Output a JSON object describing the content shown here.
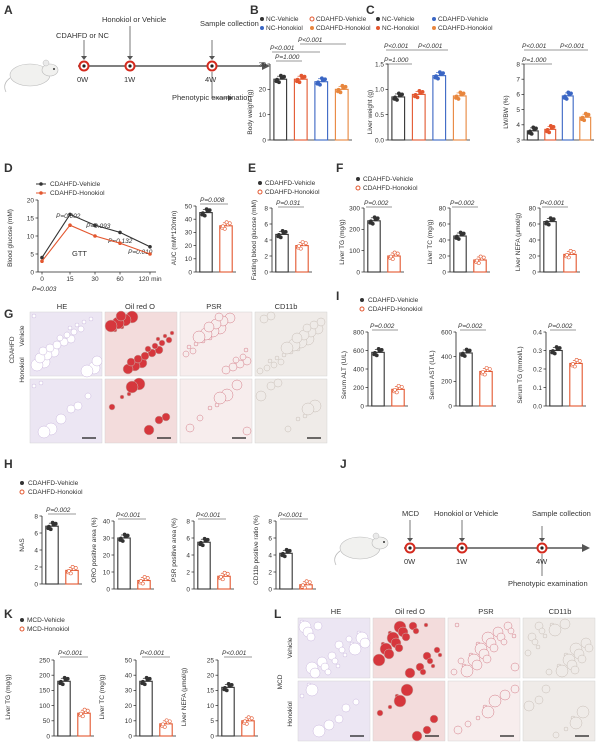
{
  "panels": {
    "A": {
      "letter": "A",
      "diet_label": "CDAHFD or NC",
      "treatment_label": "Honokiol or Vehicle",
      "sample_label": "Sample collection",
      "pheno_label": "Phenotypic examination",
      "timepoints": [
        "0W",
        "1W",
        "4W"
      ]
    },
    "B": {
      "letter": "B",
      "legend": [
        "NC-Vehicle",
        "CDAHFD-Vehicle",
        "NC-Honokiol",
        "CDAHFD-Honokiol"
      ],
      "ylabel": "Body weight (g)",
      "yticks": [
        "0",
        "10",
        "20",
        "30"
      ],
      "pvalues": [
        "P=1.000",
        "P<0.001",
        "P<0.001"
      ]
    },
    "C": {
      "letter": "C",
      "legend": [
        "NC-Vehicle",
        "CDAHFD-Vehicle",
        "NC-Honokiol",
        "CDAHFD-Honokiol"
      ],
      "left_ylabel": "Liver weight (g)",
      "left_yticks": [
        "0.0",
        "0.5",
        "1.0",
        "1.5"
      ],
      "left_pvalues": [
        "P<0.001",
        "P<0.001",
        "P=1.000"
      ],
      "right_ylabel": "LW/BW (%)",
      "right_yticks": [
        "3",
        "4",
        "5",
        "6",
        "7",
        "8"
      ],
      "right_pvalues": [
        "P<0.001",
        "P<0.001",
        "P=1.000"
      ]
    },
    "D": {
      "letter": "D",
      "legend": [
        "CDAHFD-Vehicle",
        "CDAHFD-Honokiol"
      ],
      "ylabel": "Blood glucose (mM)",
      "yticks": [
        "0",
        "5",
        "10",
        "15",
        "20"
      ],
      "xticks": [
        "0",
        "15",
        "30",
        "60",
        "120 min"
      ],
      "curve_label": "GTT",
      "pvalues": [
        "P=0.002",
        "P=0.093",
        "P=0.132",
        "P=0.010",
        "P=0.003"
      ],
      "auc_ylabel": "AUC (mM*120min)",
      "auc_yticks": [
        "0",
        "10",
        "20",
        "30",
        "40",
        "50"
      ],
      "auc_pvalue": "P=0.008"
    },
    "E": {
      "letter": "E",
      "legend": [
        "CDAHFD-Vehicle",
        "CDAHFD-Honokiol"
      ],
      "ylabel": "Fasting blood glucose (mM)",
      "yticks": [
        "0",
        "2",
        "4",
        "6",
        "8"
      ],
      "pvalue": "P=0.031"
    },
    "F": {
      "letter": "F",
      "legend": [
        "CDAHFD-Vehicle",
        "CDAHFD-Honokiol"
      ],
      "plots": [
        {
          "ylabel": "Liver TG (mg/g)",
          "yticks": [
            "0",
            "100",
            "200",
            "300"
          ],
          "pvalue": "P=0.002"
        },
        {
          "ylabel": "Liver TC (mg/g)",
          "yticks": [
            "0",
            "20",
            "40",
            "60",
            "80"
          ],
          "pvalue": "P=0.002"
        },
        {
          "ylabel": "Liver NEFA (μmol/g)",
          "yticks": [
            "0",
            "20",
            "40",
            "60",
            "80"
          ],
          "pvalue": "P<0.001"
        }
      ]
    },
    "G": {
      "letter": "G",
      "columns": [
        "HE",
        "Oil red O",
        "PSR",
        "CD11b"
      ],
      "group_label": "CDAHFD",
      "rows": [
        "Vehicle",
        "Honokiol"
      ]
    },
    "H": {
      "letter": "H",
      "legend": [
        "CDAHFD-Vehicle",
        "CDAHFD-Honokiol"
      ],
      "plots": [
        {
          "ylabel": "NAS",
          "yticks": [
            "0",
            "2",
            "4",
            "6",
            "8"
          ],
          "pvalue": "P=0.002"
        },
        {
          "ylabel": "ORO positive area (%)",
          "yticks": [
            "0",
            "10",
            "20",
            "30",
            "40"
          ],
          "pvalue": "P<0.001"
        },
        {
          "ylabel": "PSR positive area (%)",
          "yticks": [
            "0",
            "2",
            "4",
            "6",
            "8"
          ],
          "pvalue": "P<0.001"
        },
        {
          "ylabel": "CD11b positive ratio (%)",
          "yticks": [
            "0",
            "2",
            "4",
            "6",
            "8"
          ],
          "pvalue": "P<0.001"
        }
      ]
    },
    "I": {
      "letter": "I",
      "legend": [
        "CDAHFD-Vehicle",
        "CDAHFD-Honokiol"
      ],
      "plots": [
        {
          "ylabel": "Serum ALT (U/L)",
          "yticks": [
            "0",
            "200",
            "400",
            "600",
            "800"
          ],
          "pvalue": "P=0.002"
        },
        {
          "ylabel": "Serum AST (U/L)",
          "yticks": [
            "0",
            "200",
            "400",
            "600"
          ],
          "pvalue": "P=0.002"
        },
        {
          "ylabel": "Serum TG (mmol/L)",
          "yticks": [
            "0.0",
            "0.1",
            "0.2",
            "0.3",
            "0.4"
          ],
          "pvalue": "P=0.002"
        }
      ]
    },
    "J": {
      "letter": "J",
      "diet_label": "MCD",
      "treatment_label": "Honokiol or Vehicle",
      "sample_label": "Sample collection",
      "pheno_label": "Phenotypic examination",
      "timepoints": [
        "0W",
        "1W",
        "4W"
      ]
    },
    "K": {
      "letter": "K",
      "legend": [
        "MCD-Vehicle",
        "MCD-Honokiol"
      ],
      "plots": [
        {
          "ylabel": "Liver TG (mg/g)",
          "yticks": [
            "0",
            "50",
            "100",
            "150",
            "200",
            "250"
          ],
          "pvalue": "P<0.001"
        },
        {
          "ylabel": "Liver TC (mg/g)",
          "yticks": [
            "0",
            "10",
            "20",
            "30",
            "40",
            "50"
          ],
          "pvalue": "P<0.001"
        },
        {
          "ylabel": "Liver NEFA (μmol/g)",
          "yticks": [
            "0",
            "5",
            "10",
            "15",
            "20",
            "25"
          ],
          "pvalue": "P<0.001"
        }
      ]
    },
    "L": {
      "letter": "L",
      "columns": [
        "HE",
        "Oil red O",
        "PSR",
        "CD11b"
      ],
      "group_label": "MCD",
      "rows": [
        "Vehicle",
        "Honokiol"
      ]
    }
  },
  "colors": {
    "vehicle_ring": "#d42a1e",
    "nc_vehicle": "#333333",
    "cdahfd_vehicle": "#e3572f",
    "nc_honokiol": "#3a66c4",
    "cdahfd_honokiol": "#e8863d",
    "he_stain": "#c9b6dd",
    "oro_stain": "#d6373d",
    "psr_stain": "#e9cfd2",
    "cd11b_stain": "#ddd6d2"
  },
  "chart_data": [
    {
      "type": "bar",
      "panel": "B",
      "categories": [
        "NC-Vehicle",
        "CDAHFD-Vehicle",
        "NC-Honokiol",
        "CDAHFD-Honokiol"
      ],
      "values": [
        24,
        24,
        23,
        20
      ],
      "ylabel": "Body weight (g)",
      "ylim": [
        0,
        30
      ]
    },
    {
      "type": "bar",
      "panel": "C-left",
      "categories": [
        "NC-Vehicle",
        "CDAHFD-Vehicle",
        "NC-Honokiol",
        "CDAHFD-Honokiol"
      ],
      "values": [
        0.85,
        0.9,
        1.27,
        0.87
      ],
      "ylabel": "Liver weight (g)",
      "ylim": [
        0,
        1.5
      ]
    },
    {
      "type": "bar",
      "panel": "C-right",
      "categories": [
        "NC-Vehicle",
        "CDAHFD-Vehicle",
        "NC-Honokiol",
        "CDAHFD-Honokiol"
      ],
      "values": [
        3.6,
        3.7,
        5.9,
        4.5
      ],
      "ylabel": "LW/BW (%)",
      "ylim": [
        3,
        8
      ]
    },
    {
      "type": "line",
      "panel": "D",
      "x": [
        0,
        15,
        30,
        60,
        120
      ],
      "series": [
        {
          "name": "CDAHFD-Vehicle",
          "values": [
            4,
            16,
            13,
            11,
            7
          ]
        },
        {
          "name": "CDAHFD-Honokiol",
          "values": [
            3,
            13,
            10,
            8,
            5
          ]
        }
      ],
      "ylabel": "Blood glucose (mM)",
      "ylim": [
        0,
        20
      ]
    },
    {
      "type": "bar",
      "panel": "D-AUC",
      "categories": [
        "CDAHFD-Vehicle",
        "CDAHFD-Honokiol"
      ],
      "values": [
        45,
        35
      ],
      "ylabel": "AUC (mM*120min)",
      "ylim": [
        0,
        50
      ]
    },
    {
      "type": "bar",
      "panel": "E",
      "categories": [
        "CDAHFD-Vehicle",
        "CDAHFD-Honokiol"
      ],
      "values": [
        4.7,
        3.3
      ],
      "ylabel": "Fasting blood glucose (mM)",
      "ylim": [
        0,
        8
      ]
    },
    {
      "type": "bar",
      "panel": "F-TG",
      "categories": [
        "CDAHFD-Vehicle",
        "CDAHFD-Honokiol"
      ],
      "values": [
        240,
        75
      ],
      "ylabel": "Liver TG (mg/g)",
      "ylim": [
        0,
        300
      ]
    },
    {
      "type": "bar",
      "panel": "F-TC",
      "categories": [
        "CDAHFD-Vehicle",
        "CDAHFD-Honokiol"
      ],
      "values": [
        45,
        15
      ],
      "ylabel": "Liver TC (mg/g)",
      "ylim": [
        0,
        80
      ]
    },
    {
      "type": "bar",
      "panel": "F-NEFA",
      "categories": [
        "CDAHFD-Vehicle",
        "CDAHFD-Honokiol"
      ],
      "values": [
        63,
        22
      ],
      "ylabel": "Liver NEFA (μmol/g)",
      "ylim": [
        0,
        80
      ]
    },
    {
      "type": "bar",
      "panel": "H-NAS",
      "categories": [
        "CDAHFD-Vehicle",
        "CDAHFD-Honokiol"
      ],
      "values": [
        6.8,
        1.6
      ],
      "ylabel": "NAS",
      "ylim": [
        0,
        8
      ]
    },
    {
      "type": "bar",
      "panel": "H-ORO",
      "categories": [
        "CDAHFD-Vehicle",
        "CDAHFD-Honokiol"
      ],
      "values": [
        30,
        5
      ],
      "ylabel": "ORO positive area (%)",
      "ylim": [
        0,
        40
      ]
    },
    {
      "type": "bar",
      "panel": "H-PSR",
      "categories": [
        "CDAHFD-Vehicle",
        "CDAHFD-Honokiol"
      ],
      "values": [
        5.5,
        1.5
      ],
      "ylabel": "PSR positive area (%)",
      "ylim": [
        0,
        8
      ]
    },
    {
      "type": "bar",
      "panel": "H-CD11b",
      "categories": [
        "CDAHFD-Vehicle",
        "CDAHFD-Honokiol"
      ],
      "values": [
        4.2,
        0.5
      ],
      "ylabel": "CD11b positive ratio (%)",
      "ylim": [
        0,
        8
      ]
    },
    {
      "type": "bar",
      "panel": "I-ALT",
      "categories": [
        "CDAHFD-Vehicle",
        "CDAHFD-Honokiol"
      ],
      "values": [
        580,
        180
      ],
      "ylabel": "Serum ALT (U/L)",
      "ylim": [
        0,
        800
      ]
    },
    {
      "type": "bar",
      "panel": "I-AST",
      "categories": [
        "CDAHFD-Vehicle",
        "CDAHFD-Honokiol"
      ],
      "values": [
        430,
        280
      ],
      "ylabel": "Serum AST (U/L)",
      "ylim": [
        0,
        600
      ]
    },
    {
      "type": "bar",
      "panel": "I-TG",
      "categories": [
        "CDAHFD-Vehicle",
        "CDAHFD-Honokiol"
      ],
      "values": [
        0.3,
        0.23
      ],
      "ylabel": "Serum TG (mmol/L)",
      "ylim": [
        0,
        0.4
      ]
    },
    {
      "type": "bar",
      "panel": "K-TG",
      "categories": [
        "MCD-Vehicle",
        "MCD-Honokiol"
      ],
      "values": [
        180,
        75
      ],
      "ylabel": "Liver TG (mg/g)",
      "ylim": [
        0,
        250
      ]
    },
    {
      "type": "bar",
      "panel": "K-TC",
      "categories": [
        "MCD-Vehicle",
        "MCD-Honokiol"
      ],
      "values": [
        36,
        8
      ],
      "ylabel": "Liver TC (mg/g)",
      "ylim": [
        0,
        50
      ]
    },
    {
      "type": "bar",
      "panel": "K-NEFA",
      "categories": [
        "MCD-Vehicle",
        "MCD-Honokiol"
      ],
      "values": [
        16,
        5
      ],
      "ylabel": "Liver NEFA (μmol/g)",
      "ylim": [
        0,
        25
      ]
    }
  ]
}
